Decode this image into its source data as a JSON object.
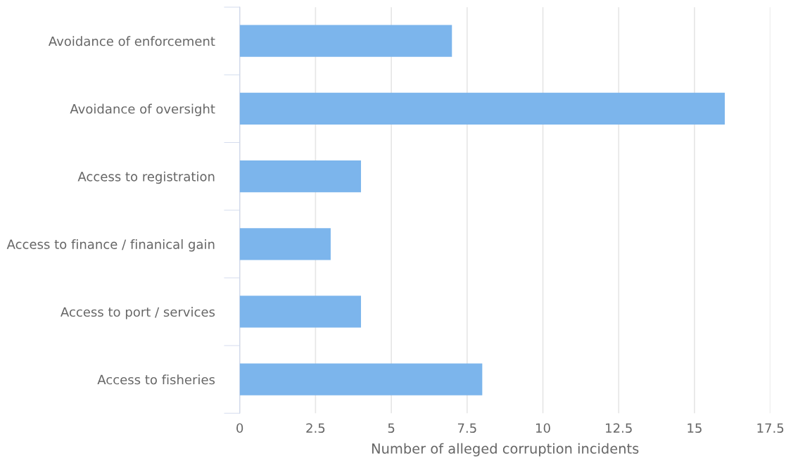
{
  "chart_data": {
    "type": "bar",
    "orientation": "horizontal",
    "categories": [
      "Avoidance of enforcement",
      "Avoidance of oversight",
      "Access to registration",
      "Access to finance / finanical gain",
      "Access to port / services",
      "Access to fisheries"
    ],
    "values": [
      7,
      16,
      4,
      3,
      4,
      8
    ],
    "color": "#7cb5ec",
    "xlabel": "Number of alleged corruption incidents",
    "xlim": [
      0,
      17.5
    ],
    "xticks": [
      0,
      2.5,
      5,
      7.5,
      10,
      12.5,
      15,
      17.5
    ],
    "grid": "x"
  }
}
